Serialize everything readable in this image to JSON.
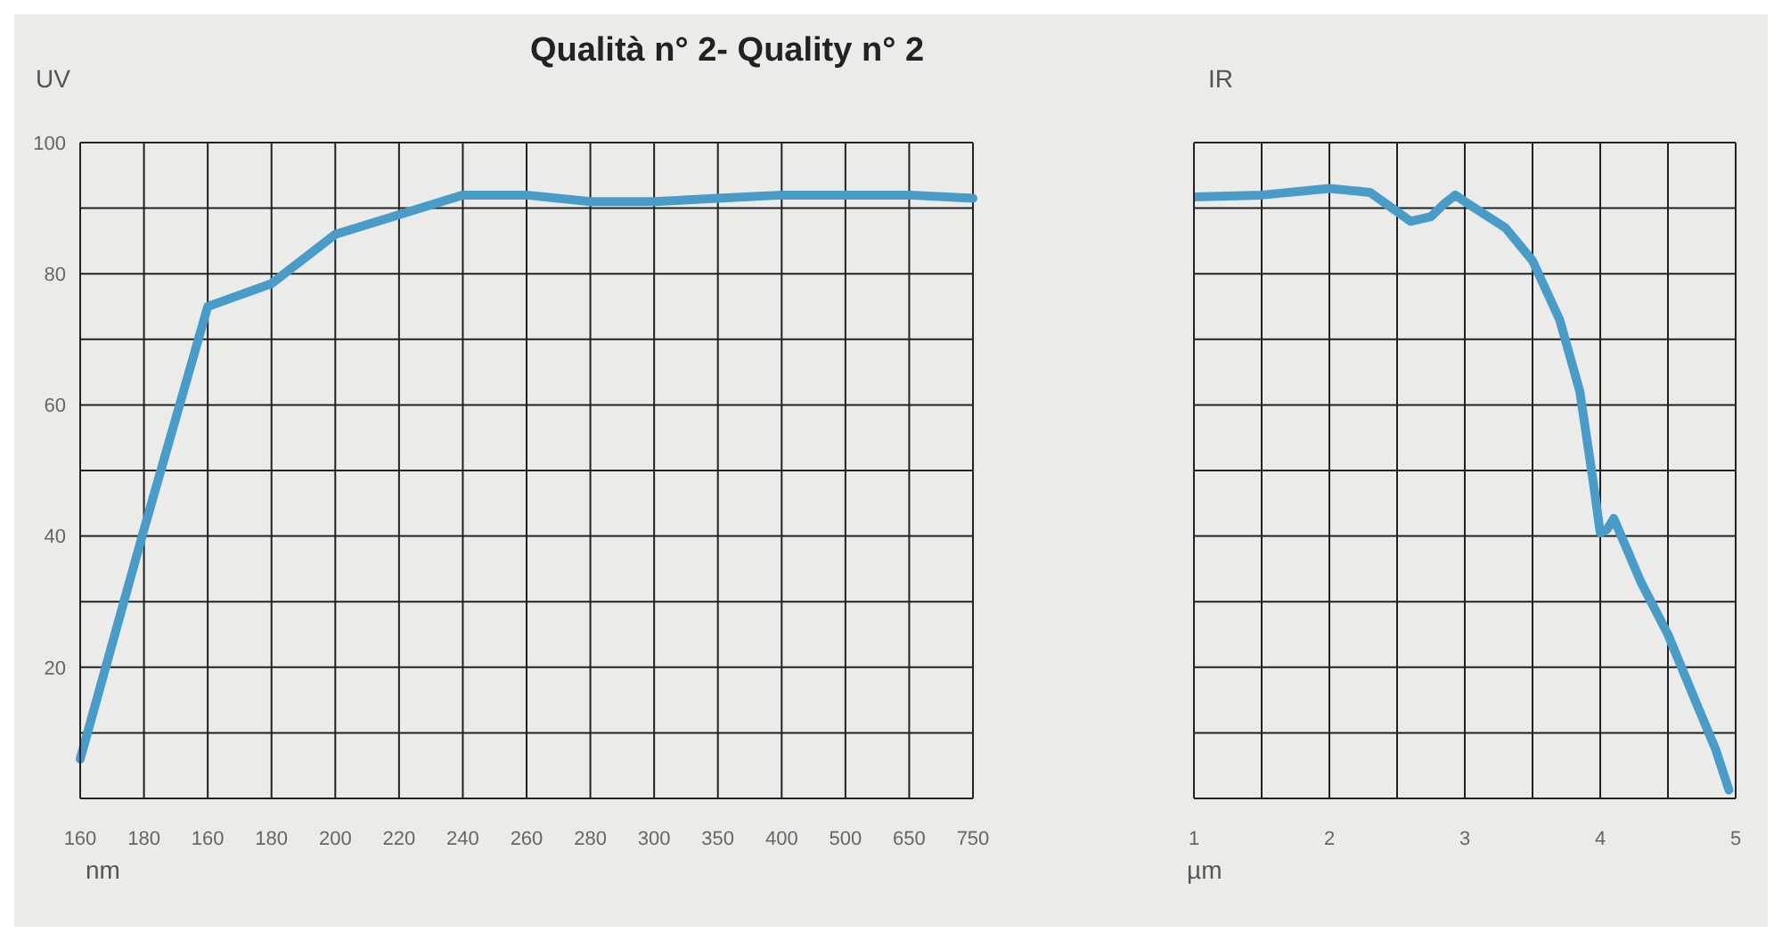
{
  "chart_data": [
    {
      "type": "line",
      "title": "Qualità n° 2- Quality n° 2",
      "ylabel": "UV",
      "xlabel": "nm",
      "marker": "none",
      "grid": true,
      "categories": [
        "160",
        "180",
        "160",
        "180",
        "200",
        "220",
        "240",
        "260",
        "280",
        "300",
        "350",
        "400",
        "500",
        "650",
        "750"
      ],
      "series": [
        {
          "color": "#4a9cc8",
          "values": [
            6,
            41,
            75,
            78.5,
            86,
            89,
            92,
            92,
            91,
            91,
            91.5,
            92,
            92,
            92,
            91.5
          ]
        }
      ],
      "ylim": [
        0,
        100
      ],
      "yticks": [
        {
          "value": 0,
          "label": null
        },
        {
          "value": 10,
          "label": null
        },
        20,
        {
          "value": 30,
          "label": null
        },
        40,
        {
          "value": 50,
          "label": null
        },
        60,
        {
          "value": 70,
          "label": null
        },
        80,
        {
          "value": 90,
          "label": null
        },
        100
      ]
    },
    {
      "type": "line",
      "ylabel": "IR",
      "xlabel": "µm",
      "marker": "none",
      "grid": true,
      "tick_labels": "x",
      "x": [
        1,
        1.5,
        2,
        2.3,
        2.6,
        2.75,
        2.85,
        2.93,
        3,
        3.3,
        3.5,
        3.7,
        3.85,
        3.95,
        4,
        4.05,
        4.1,
        4.3,
        4.5,
        4.7,
        4.85,
        4.95
      ],
      "series": [
        {
          "color": "#4a9cc8",
          "values": [
            91.7,
            92,
            93,
            92.4,
            88,
            88.7,
            90.7,
            92,
            91,
            87,
            82,
            73,
            62,
            48,
            40.5,
            41,
            42.7,
            33,
            25,
            15,
            7.6,
            1.3
          ]
        }
      ],
      "xlim": [
        1,
        5
      ],
      "xticks": [
        1,
        {
          "value": 1.5,
          "label": null
        },
        2,
        {
          "value": 2.5,
          "label": null
        },
        3,
        {
          "value": 3.5,
          "label": null
        },
        4,
        {
          "value": 4.5,
          "label": null
        },
        5
      ],
      "ylim": [
        0,
        100
      ],
      "yticks": [
        {
          "value": 0,
          "label": null
        },
        {
          "value": 10,
          "label": null
        },
        {
          "value": 20,
          "label": null
        },
        {
          "value": 30,
          "label": null
        },
        {
          "value": 40,
          "label": null
        },
        {
          "value": 50,
          "label": null
        },
        {
          "value": 60,
          "label": null
        },
        {
          "value": 70,
          "label": null
        },
        {
          "value": 80,
          "label": null
        },
        {
          "value": 90,
          "label": null
        },
        {
          "value": 100,
          "label": null
        }
      ]
    }
  ]
}
